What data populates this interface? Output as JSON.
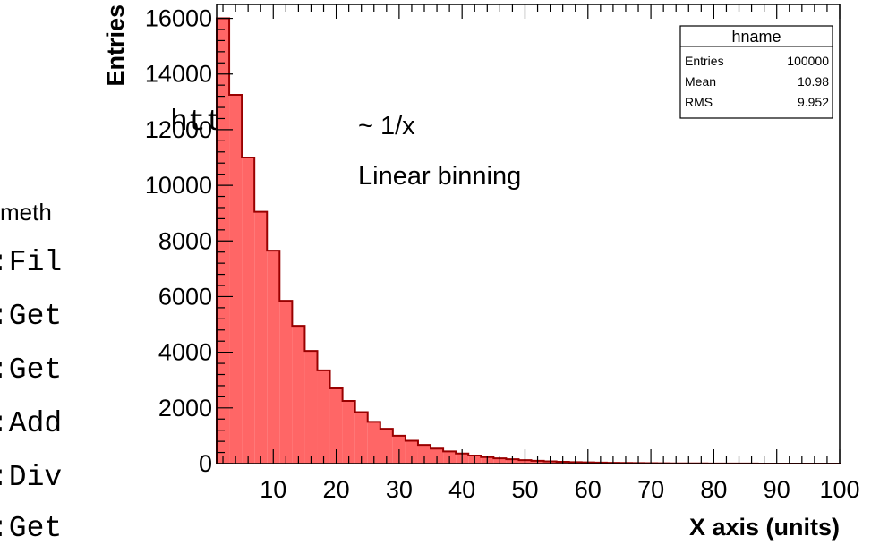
{
  "background_text": {
    "lines": [
      {
        "text": "htt",
        "style": "mono"
      },
      {
        "text": "meth",
        "style": "sans"
      },
      {
        "text": ":Fil",
        "style": "mono"
      },
      {
        "text": ":Get",
        "style": "mono"
      },
      {
        "text": ":Get",
        "style": "mono"
      },
      {
        "text": ":Add",
        "style": "mono"
      },
      {
        "text": ":Div",
        "style": "mono"
      },
      {
        "text": ":Get",
        "style": "mono"
      }
    ]
  },
  "chart_data": {
    "type": "bar",
    "subtype": "histogram",
    "xlabel": "X axis (units)",
    "ylabel": "Entries",
    "xlim": [
      1,
      100
    ],
    "ylim": [
      0,
      16500
    ],
    "bin_width": 2,
    "x_ticks": [
      "10",
      "20",
      "30",
      "40",
      "50",
      "60",
      "70",
      "80",
      "90",
      "100"
    ],
    "y_ticks": [
      "0",
      "2000",
      "4000",
      "6000",
      "8000",
      "10000",
      "12000",
      "14000",
      "16000"
    ],
    "bins_low_edges": [
      1,
      3,
      5,
      7,
      9,
      11,
      13,
      15,
      17,
      19,
      21,
      23,
      25,
      27,
      29,
      31,
      33,
      35,
      37,
      39,
      41,
      43,
      45,
      47,
      49,
      51,
      53,
      55,
      57,
      59,
      61,
      63,
      65,
      67,
      69,
      71,
      73,
      75,
      77,
      79,
      81,
      83,
      85,
      87,
      89,
      91,
      93,
      95,
      97,
      99
    ],
    "values": [
      16000,
      13250,
      11000,
      9050,
      7650,
      5850,
      4950,
      4050,
      3350,
      2700,
      2250,
      1850,
      1500,
      1250,
      1000,
      820,
      670,
      540,
      440,
      360,
      290,
      235,
      190,
      155,
      125,
      100,
      82,
      66,
      54,
      44,
      36,
      29,
      24,
      19,
      16,
      13,
      10,
      8,
      7,
      6,
      5,
      4,
      3,
      2,
      2,
      2,
      1,
      1,
      1,
      1
    ],
    "fill_color": "#ff6666",
    "line_color": "#990000",
    "annotations": [
      "~ 1/x",
      "Linear binning"
    ],
    "stats_box": {
      "title": "hname",
      "rows": [
        {
          "label": "Entries",
          "value": "100000"
        },
        {
          "label": "Mean",
          "value": "10.98"
        },
        {
          "label": "RMS",
          "value": "9.952"
        }
      ]
    }
  }
}
